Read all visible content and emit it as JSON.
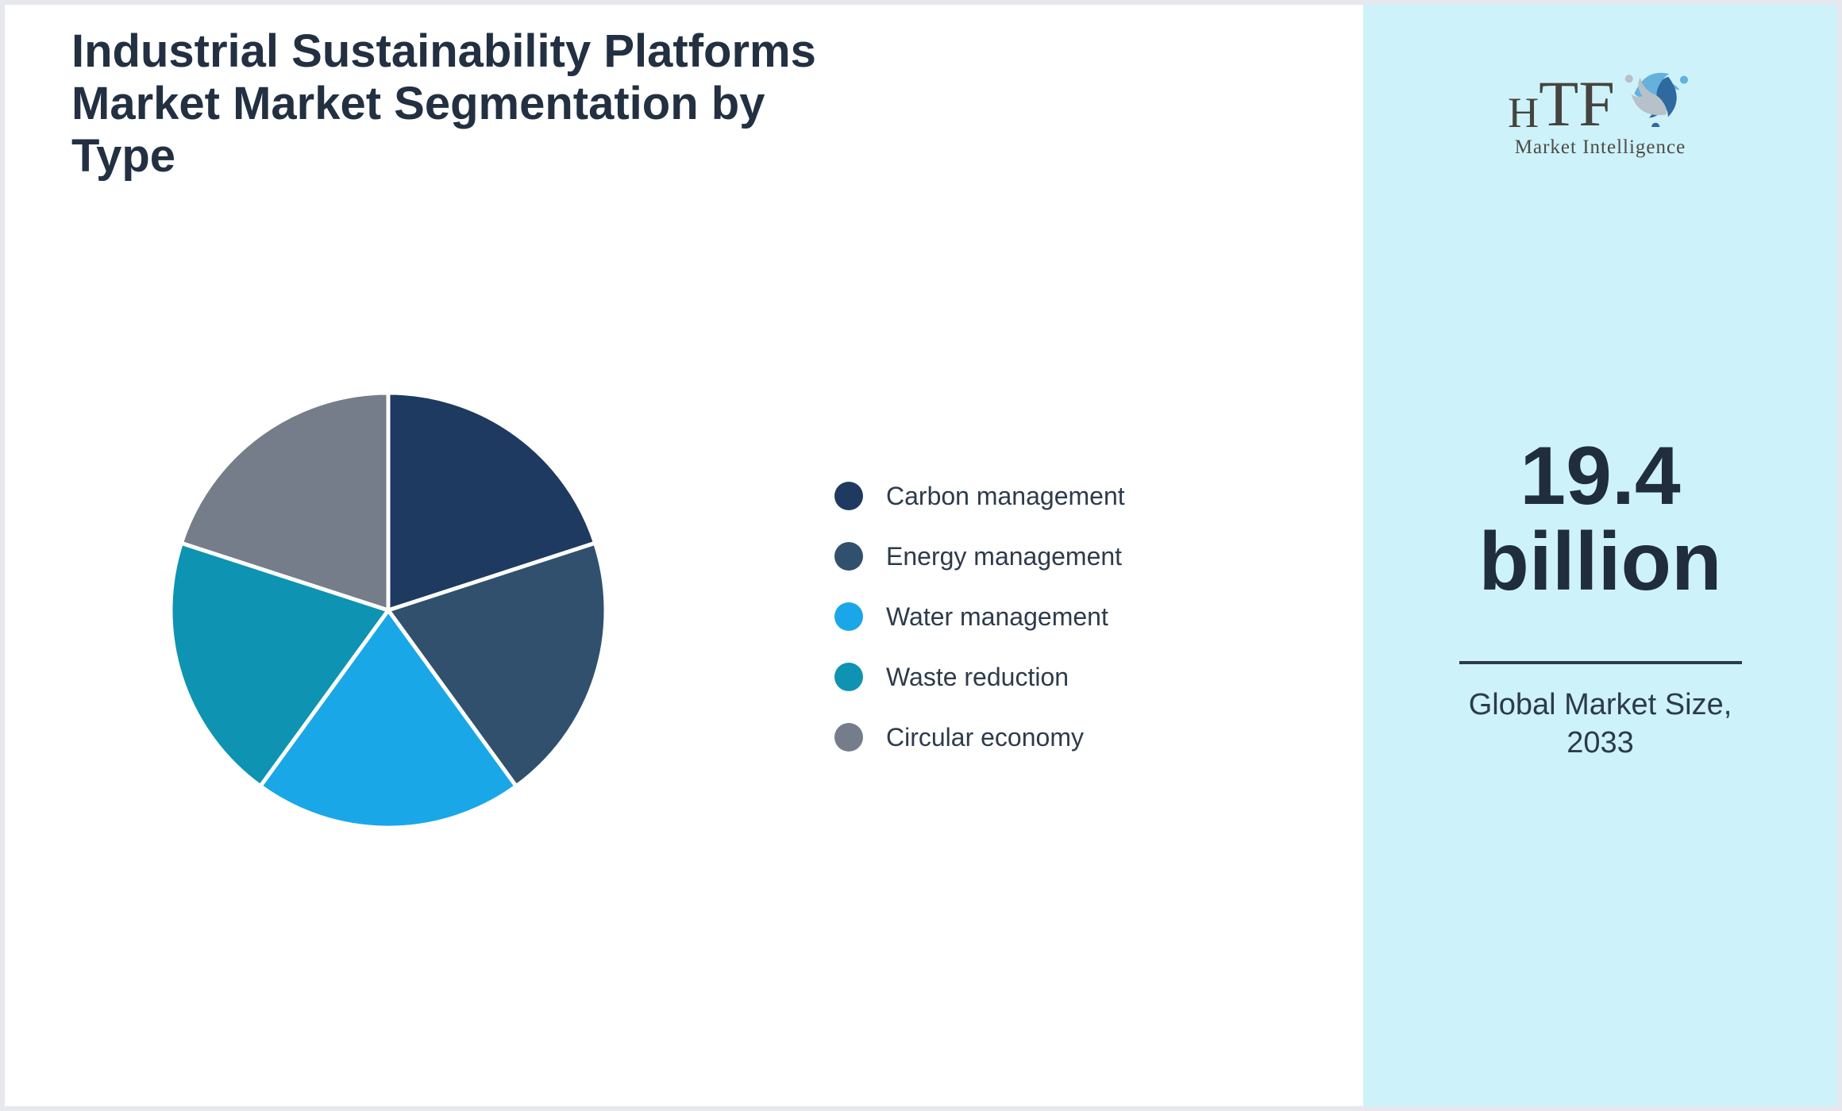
{
  "header": {
    "title_lines": [
      "Industrial Sustainability Platforms",
      "Market Market Segmentation by",
      "Type"
    ]
  },
  "chart_data": {
    "type": "pie",
    "title": "Industrial Sustainability Platforms Market Market Segmentation by Type",
    "categories": [
      "Carbon management",
      "Energy management",
      "Water management",
      "Waste reduction",
      "Circular economy"
    ],
    "values": [
      20,
      20,
      20,
      20,
      20
    ],
    "unit": "%",
    "colors": [
      "#1e3a60",
      "#30506e",
      "#1aa7e8",
      "#0f93b2",
      "#757d8a"
    ],
    "start_angle_deg": 0,
    "direction": "clockwise",
    "legend_position": "right",
    "slice_border_color": "#ffffff",
    "legend_text_color": "#2e3b4b"
  },
  "sidebar": {
    "background": "#cef2fa",
    "logo": {
      "letters": [
        "H",
        "T",
        "F"
      ],
      "tagline": "Market Intelligence",
      "dolphin_colors": [
        "#64b1de",
        "#2e699f",
        "#b7c1ca"
      ]
    },
    "market_size": {
      "lines": [
        "19.4",
        "billion"
      ],
      "caption_lines": [
        "Global Market Size,",
        "2033"
      ]
    }
  }
}
